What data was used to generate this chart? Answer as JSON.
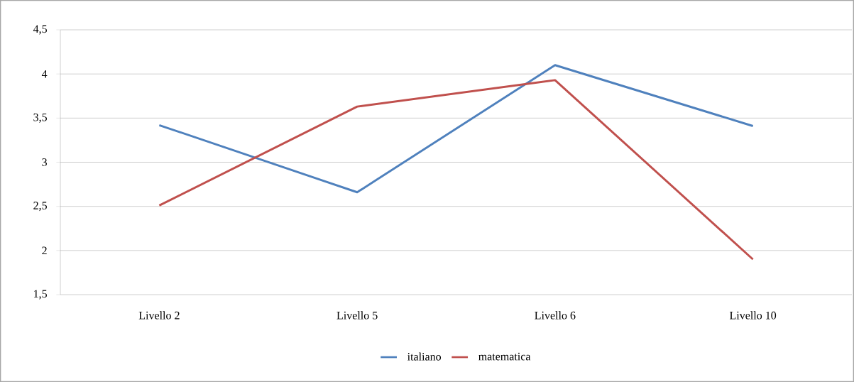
{
  "chart_data": {
    "type": "line",
    "categories": [
      "Livello 2",
      "Livello 5",
      "Livello 6",
      "Livello 10"
    ],
    "series": [
      {
        "name": "italiano",
        "color": "#4f81bd",
        "values": [
          3.42,
          2.66,
          4.1,
          3.41
        ]
      },
      {
        "name": "matematica",
        "color": "#c0504d",
        "values": [
          2.51,
          3.63,
          3.93,
          1.9
        ]
      }
    ],
    "ylim": [
      1.5,
      4.5
    ],
    "yticks": [
      {
        "value": 1.5,
        "label": "1,5"
      },
      2,
      {
        "value": 2.5,
        "label": "2,5"
      },
      3,
      {
        "value": 3.5,
        "label": "3,5"
      },
      4,
      {
        "value": 4.5,
        "label": "4,5"
      }
    ],
    "grid": "y",
    "legend": "bottom",
    "marker": "none",
    "line_style": "solid"
  }
}
